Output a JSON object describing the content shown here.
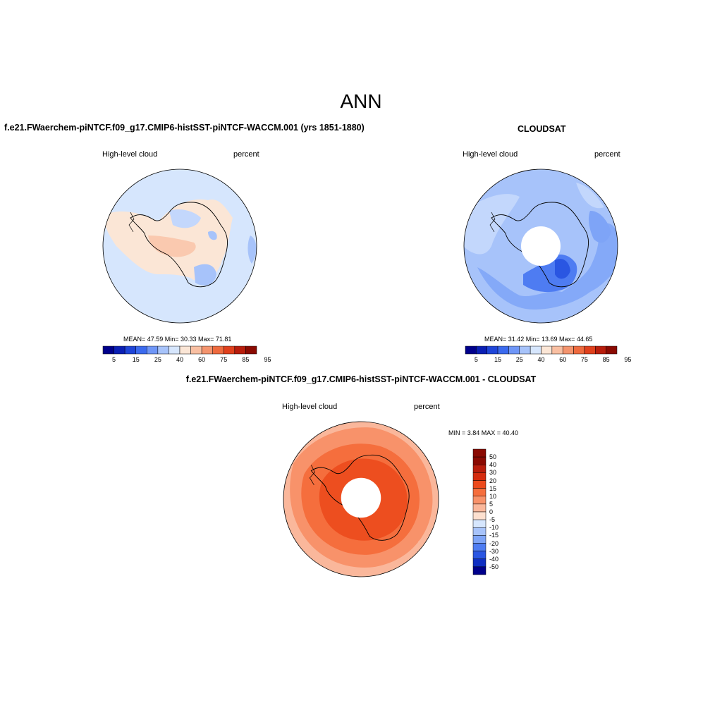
{
  "title": "ANN",
  "panels": [
    {
      "title": "f.e21.FWaerchem-piNTCF.f09_g17.CMIP6-histSST-piNTCF-WACCM.001 (yrs 1851-1880)",
      "left_label": "High-level cloud",
      "right_label": "percent",
      "stats": "MEAN=  47.59  Min=  30.33  Max=  71.81",
      "colorbar_ticks": [
        "5",
        "15",
        "25",
        "40",
        "60",
        "75",
        "85",
        "95"
      ]
    },
    {
      "title": "CLOUDSAT",
      "left_label": "High-level cloud",
      "right_label": "percent",
      "stats": "MEAN=  31.42  Min=  13.69  Max=  44.65",
      "colorbar_ticks": [
        "5",
        "15",
        "25",
        "40",
        "60",
        "75",
        "85",
        "95"
      ]
    },
    {
      "title": "f.e21.FWaerchem-piNTCF.f09_g17.CMIP6-histSST-piNTCF-WACCM.001 - CLOUDSAT",
      "left_label": "High-level cloud",
      "right_label": "percent",
      "stats": "MIN =   3.84 MAX =  40.40",
      "colorbar_ticks": [
        "50",
        "40",
        "30",
        "20",
        "15",
        "10",
        "5",
        "0",
        "-5",
        "-10",
        "-15",
        "-20",
        "-30",
        "-40",
        "-50"
      ]
    }
  ],
  "colors": {
    "seq_scale": [
      "#00008b",
      "#0a1fb4",
      "#1f45d8",
      "#3b6aee",
      "#6f96f7",
      "#a7c3fa",
      "#d6e6fd",
      "#fbe6d6",
      "#f9bfa2",
      "#f4946e",
      "#ee6a3e",
      "#e0401c",
      "#b81d0c",
      "#8a0a02"
    ],
    "diff_scale": [
      "#8a0a02",
      "#b81d0c",
      "#d42c0f",
      "#ec4a1c",
      "#f56e3d",
      "#f8926a",
      "#fab79b",
      "#fde0cf",
      "#d6e6fd",
      "#a7c3fa",
      "#7ea4f7",
      "#4e7cf2",
      "#2a56e2",
      "#0f2fc2",
      "#00008b"
    ]
  }
}
